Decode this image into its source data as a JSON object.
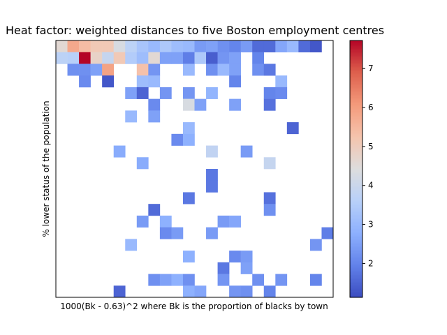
{
  "chart_data": {
    "type": "heatmap",
    "title": "Heat factor: weighted distances to five Boston employment centres",
    "xlabel": "1000(Bk - 0.63)^2 where Bk is the proportion of blacks by town",
    "ylabel": "% lower status of the population",
    "x_ticks_shown": false,
    "y_ticks_shown": false,
    "grid": false,
    "colormap": "coolwarm",
    "colorbar": {
      "vmin": 1.13,
      "vmax": 7.72,
      "ticks": [
        2,
        3,
        4,
        5,
        6,
        7
      ],
      "tick_labels": [
        "2",
        "3",
        "4",
        "5",
        "6",
        "7"
      ]
    },
    "n_cols": 24,
    "n_rows": 22,
    "cells": [
      {
        "col": 0,
        "row": 0,
        "value": 4.6
      },
      {
        "col": 1,
        "row": 0,
        "value": 5.8
      },
      {
        "col": 2,
        "row": 0,
        "value": 5.4
      },
      {
        "col": 3,
        "row": 0,
        "value": 5.1
      },
      {
        "col": 4,
        "row": 0,
        "value": 5.1
      },
      {
        "col": 5,
        "row": 0,
        "value": 4.3
      },
      {
        "col": 6,
        "row": 0,
        "value": 3.7
      },
      {
        "col": 7,
        "row": 0,
        "value": 3.3
      },
      {
        "col": 8,
        "row": 0,
        "value": 3.0
      },
      {
        "col": 9,
        "row": 0,
        "value": 3.4
      },
      {
        "col": 10,
        "row": 0,
        "value": 3.1
      },
      {
        "col": 11,
        "row": 0,
        "value": 3.0
      },
      {
        "col": 12,
        "row": 0,
        "value": 2.4
      },
      {
        "col": 13,
        "row": 0,
        "value": 2.5
      },
      {
        "col": 14,
        "row": 0,
        "value": 2.2
      },
      {
        "col": 15,
        "row": 0,
        "value": 2.0
      },
      {
        "col": 16,
        "row": 0,
        "value": 2.4
      },
      {
        "col": 17,
        "row": 0,
        "value": 1.6
      },
      {
        "col": 18,
        "row": 0,
        "value": 1.6
      },
      {
        "col": 19,
        "row": 0,
        "value": 2.6
      },
      {
        "col": 20,
        "row": 0,
        "value": 3.0
      },
      {
        "col": 21,
        "row": 0,
        "value": 1.6
      },
      {
        "col": 22,
        "row": 0,
        "value": 1.3
      },
      {
        "col": 0,
        "row": 1,
        "value": 3.7
      },
      {
        "col": 1,
        "row": 1,
        "value": 3.6
      },
      {
        "col": 2,
        "row": 1,
        "value": 7.72
      },
      {
        "col": 3,
        "row": 1,
        "value": 4.8
      },
      {
        "col": 4,
        "row": 1,
        "value": 3.9
      },
      {
        "col": 5,
        "row": 1,
        "value": 5.1
      },
      {
        "col": 6,
        "row": 1,
        "value": 3.5
      },
      {
        "col": 7,
        "row": 1,
        "value": 3.1
      },
      {
        "col": 8,
        "row": 1,
        "value": 4.6
      },
      {
        "col": 9,
        "row": 1,
        "value": 2.5
      },
      {
        "col": 10,
        "row": 1,
        "value": 2.5
      },
      {
        "col": 11,
        "row": 1,
        "value": 1.9
      },
      {
        "col": 12,
        "row": 1,
        "value": 3.4
      },
      {
        "col": 13,
        "row": 1,
        "value": 1.4
      },
      {
        "col": 14,
        "row": 1,
        "value": 2.3
      },
      {
        "col": 15,
        "row": 1,
        "value": 2.5
      },
      {
        "col": 17,
        "row": 1,
        "value": 2.0
      },
      {
        "col": 1,
        "row": 2,
        "value": 2.2
      },
      {
        "col": 2,
        "row": 2,
        "value": 2.2
      },
      {
        "col": 3,
        "row": 2,
        "value": 2.5
      },
      {
        "col": 4,
        "row": 2,
        "value": 5.9
      },
      {
        "col": 7,
        "row": 2,
        "value": 5.3
      },
      {
        "col": 8,
        "row": 2,
        "value": 2.3
      },
      {
        "col": 11,
        "row": 2,
        "value": 3.0
      },
      {
        "col": 13,
        "row": 2,
        "value": 2.2
      },
      {
        "col": 14,
        "row": 2,
        "value": 3.0
      },
      {
        "col": 15,
        "row": 2,
        "value": 2.5
      },
      {
        "col": 17,
        "row": 2,
        "value": 2.2
      },
      {
        "col": 18,
        "row": 2,
        "value": 1.8
      },
      {
        "col": 2,
        "row": 3,
        "value": 2.1
      },
      {
        "col": 4,
        "row": 3,
        "value": 1.3
      },
      {
        "col": 7,
        "row": 3,
        "value": 3.1
      },
      {
        "col": 8,
        "row": 3,
        "value": 3.0
      },
      {
        "col": 15,
        "row": 3,
        "value": 2.0
      },
      {
        "col": 19,
        "row": 3,
        "value": 3.0
      },
      {
        "col": 6,
        "row": 4,
        "value": 2.5
      },
      {
        "col": 7,
        "row": 4,
        "value": 1.5
      },
      {
        "col": 9,
        "row": 4,
        "value": 2.3
      },
      {
        "col": 11,
        "row": 4,
        "value": 2.3
      },
      {
        "col": 13,
        "row": 4,
        "value": 2.9
      },
      {
        "col": 18,
        "row": 4,
        "value": 2.0
      },
      {
        "col": 19,
        "row": 4,
        "value": 2.1
      },
      {
        "col": 8,
        "row": 5,
        "value": 2.1
      },
      {
        "col": 11,
        "row": 5,
        "value": 4.3
      },
      {
        "col": 12,
        "row": 5,
        "value": 2.5
      },
      {
        "col": 15,
        "row": 5,
        "value": 2.5
      },
      {
        "col": 18,
        "row": 5,
        "value": 1.7
      },
      {
        "col": 6,
        "row": 6,
        "value": 3.0
      },
      {
        "col": 8,
        "row": 6,
        "value": 2.5
      },
      {
        "col": 11,
        "row": 7,
        "value": 3.0
      },
      {
        "col": 20,
        "row": 7,
        "value": 1.5
      },
      {
        "col": 10,
        "row": 8,
        "value": 2.1
      },
      {
        "col": 11,
        "row": 8,
        "value": 2.8
      },
      {
        "col": 5,
        "row": 9,
        "value": 2.7
      },
      {
        "col": 13,
        "row": 9,
        "value": 3.8
      },
      {
        "col": 16,
        "row": 9,
        "value": 2.4
      },
      {
        "col": 7,
        "row": 10,
        "value": 2.7
      },
      {
        "col": 18,
        "row": 10,
        "value": 3.9
      },
      {
        "col": 13,
        "row": 11,
        "value": 1.8
      },
      {
        "col": 13,
        "row": 12,
        "value": 1.8
      },
      {
        "col": 11,
        "row": 13,
        "value": 1.8
      },
      {
        "col": 18,
        "row": 13,
        "value": 1.7
      },
      {
        "col": 8,
        "row": 14,
        "value": 1.6
      },
      {
        "col": 18,
        "row": 14,
        "value": 2.2
      },
      {
        "col": 7,
        "row": 15,
        "value": 2.4
      },
      {
        "col": 9,
        "row": 15,
        "value": 2.8
      },
      {
        "col": 14,
        "row": 15,
        "value": 2.4
      },
      {
        "col": 15,
        "row": 15,
        "value": 2.6
      },
      {
        "col": 9,
        "row": 16,
        "value": 2.1
      },
      {
        "col": 10,
        "row": 16,
        "value": 2.4
      },
      {
        "col": 13,
        "row": 16,
        "value": 2.4
      },
      {
        "col": 23,
        "row": 16,
        "value": 1.9
      },
      {
        "col": 6,
        "row": 17,
        "value": 3.0
      },
      {
        "col": 22,
        "row": 17,
        "value": 2.3
      },
      {
        "col": 11,
        "row": 18,
        "value": 2.8
      },
      {
        "col": 15,
        "row": 18,
        "value": 2.1
      },
      {
        "col": 16,
        "row": 18,
        "value": 2.4
      },
      {
        "col": 14,
        "row": 19,
        "value": 1.8
      },
      {
        "col": 16,
        "row": 19,
        "value": 2.5
      },
      {
        "col": 8,
        "row": 20,
        "value": 2.2
      },
      {
        "col": 9,
        "row": 20,
        "value": 2.5
      },
      {
        "col": 10,
        "row": 20,
        "value": 2.8
      },
      {
        "col": 11,
        "row": 20,
        "value": 2.2
      },
      {
        "col": 14,
        "row": 20,
        "value": 2.3
      },
      {
        "col": 17,
        "row": 20,
        "value": 2.2
      },
      {
        "col": 19,
        "row": 20,
        "value": 2.3
      },
      {
        "col": 22,
        "row": 20,
        "value": 2.0
      },
      {
        "col": 5,
        "row": 21,
        "value": 1.5
      },
      {
        "col": 11,
        "row": 21,
        "value": 2.8
      },
      {
        "col": 12,
        "row": 21,
        "value": 2.6
      },
      {
        "col": 15,
        "row": 21,
        "value": 2.3
      },
      {
        "col": 16,
        "row": 21,
        "value": 2.2
      },
      {
        "col": 18,
        "row": 21,
        "value": 2.0
      }
    ]
  }
}
